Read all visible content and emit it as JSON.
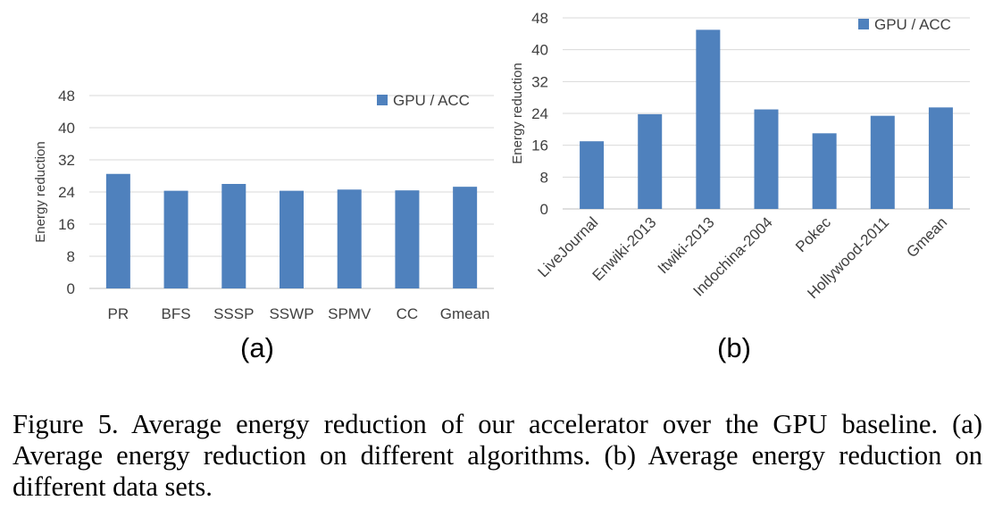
{
  "chart_data": [
    {
      "type": "bar",
      "panel_label": "(a)",
      "categories": [
        "PR",
        "BFS",
        "SSSP",
        "SSWP",
        "SPMV",
        "CC",
        "Gmean"
      ],
      "series": [
        {
          "name": "GPU / ACC",
          "values": [
            28.5,
            24.3,
            26.0,
            24.3,
            24.6,
            24.4,
            25.3
          ]
        }
      ],
      "ylabel": "Energy reduction",
      "xlabel": "",
      "ylim": [
        0,
        48
      ],
      "yticks": [
        0,
        8,
        16,
        24,
        32,
        40,
        48
      ],
      "grid": true,
      "legend_position": "top-right",
      "color": "#4f81bd"
    },
    {
      "type": "bar",
      "panel_label": "(b)",
      "categories": [
        "LiveJournal",
        "Enwiki-2013",
        "Itwiki-2013",
        "Indochina-2004",
        "Pokec",
        "Hollywood-2011",
        "Gmean"
      ],
      "series": [
        {
          "name": "GPU / ACC",
          "values": [
            17.0,
            23.8,
            45.0,
            25.0,
            19.0,
            23.4,
            25.5
          ]
        }
      ],
      "ylabel": "Energy reduction",
      "xlabel": "",
      "ylim": [
        0,
        48
      ],
      "yticks": [
        0,
        8,
        16,
        24,
        32,
        40,
        48
      ],
      "grid": true,
      "legend_position": "top-right",
      "color": "#4f81bd"
    }
  ],
  "caption": "Figure 5. Average energy reduction of our accelerator over the GPU baseline. (a) Average energy reduction on different algorithms. (b) Average energy reduction on different data sets."
}
